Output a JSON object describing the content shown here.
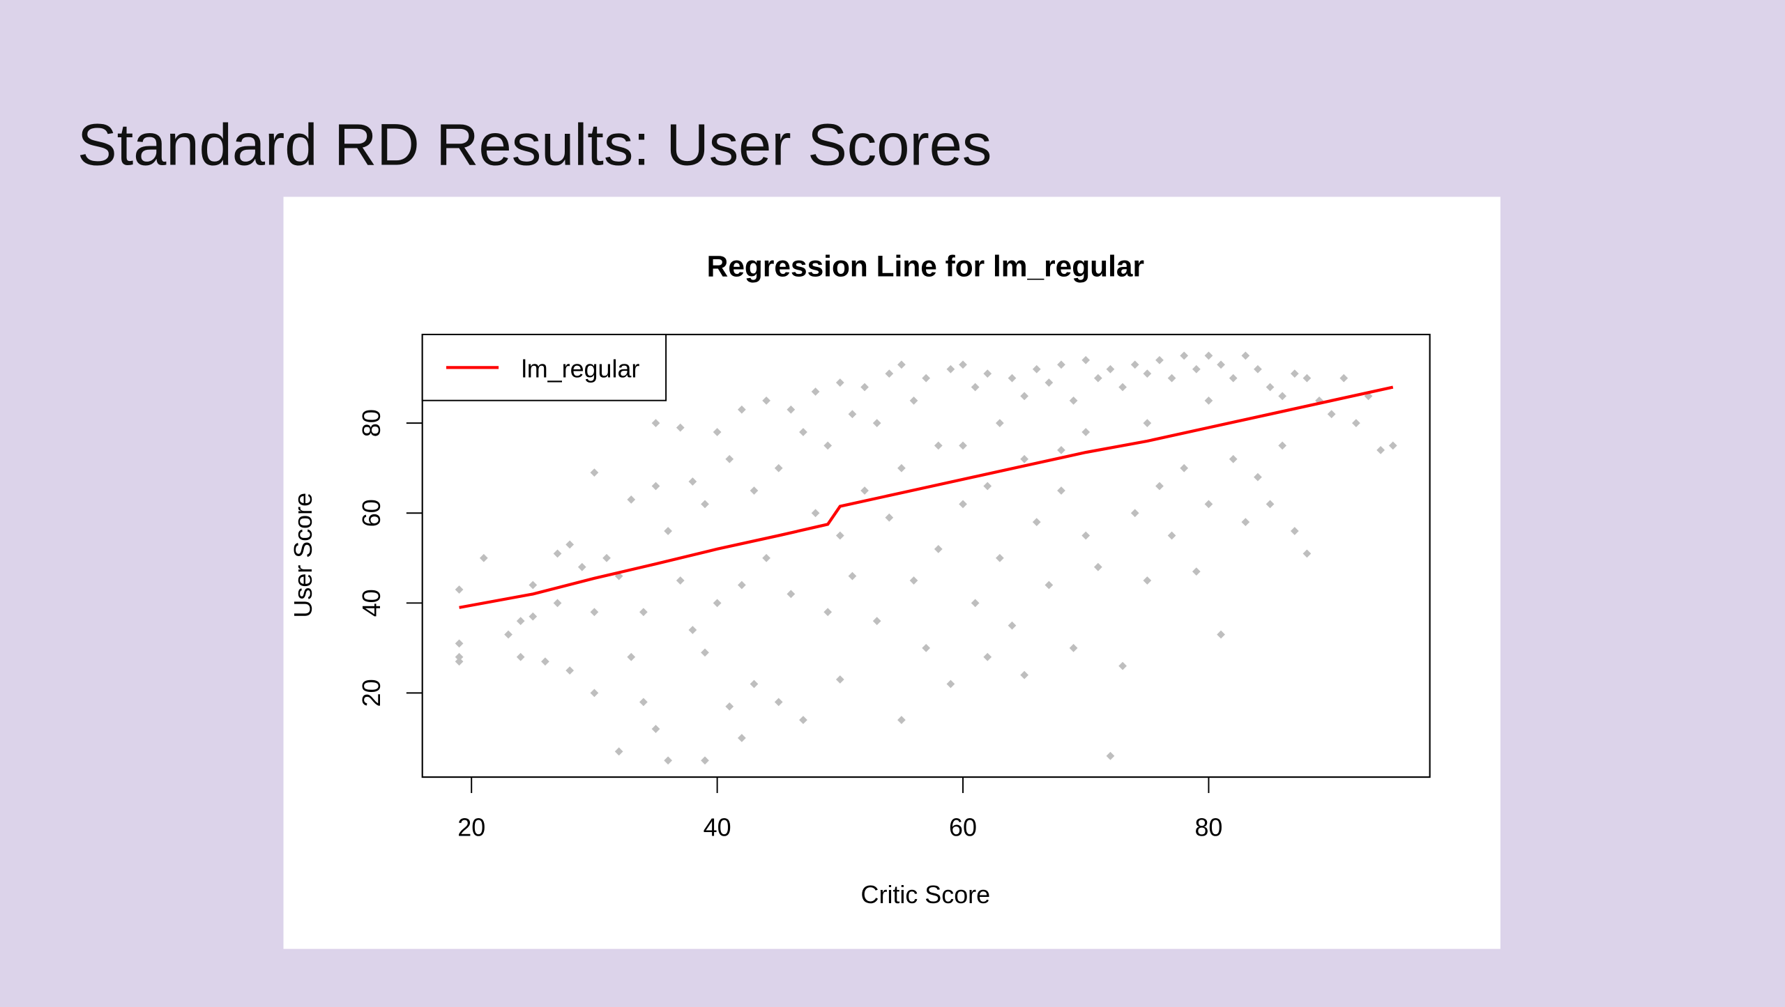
{
  "slide": {
    "title": "Standard RD Results: User Scores"
  },
  "chart_data": {
    "type": "scatter",
    "title": "Regression Line for lm_regular",
    "x_label": "Critic Score",
    "y_label": "User Score",
    "xlim": [
      16,
      98
    ],
    "ylim": [
      1.3,
      99.7
    ],
    "xticks": [
      20,
      40,
      60,
      80
    ],
    "yticks": [
      20,
      40,
      60,
      80
    ],
    "grid": false,
    "legend": "top-left",
    "point_color": "#bebebe",
    "points": [
      [
        19,
        43
      ],
      [
        19,
        31
      ],
      [
        19,
        28
      ],
      [
        19,
        27
      ],
      [
        21,
        50
      ],
      [
        23,
        33
      ],
      [
        24,
        36
      ],
      [
        24,
        28
      ],
      [
        25,
        44
      ],
      [
        25,
        37
      ],
      [
        26,
        27
      ],
      [
        27,
        51
      ],
      [
        27,
        40
      ],
      [
        28,
        53
      ],
      [
        28,
        25
      ],
      [
        29,
        48
      ],
      [
        30,
        69
      ],
      [
        30,
        38
      ],
      [
        30,
        20
      ],
      [
        31,
        50
      ],
      [
        32,
        46
      ],
      [
        32,
        7
      ],
      [
        33,
        63
      ],
      [
        33,
        28
      ],
      [
        34,
        38
      ],
      [
        34,
        18
      ],
      [
        35,
        80
      ],
      [
        35,
        66
      ],
      [
        35,
        12
      ],
      [
        36,
        56
      ],
      [
        36,
        5
      ],
      [
        37,
        79
      ],
      [
        37,
        45
      ],
      [
        38,
        67
      ],
      [
        38,
        34
      ],
      [
        39,
        62
      ],
      [
        39,
        29
      ],
      [
        39,
        5
      ],
      [
        40,
        78
      ],
      [
        40,
        40
      ],
      [
        41,
        72
      ],
      [
        41,
        17
      ],
      [
        42,
        83
      ],
      [
        42,
        44
      ],
      [
        42,
        10
      ],
      [
        43,
        65
      ],
      [
        43,
        22
      ],
      [
        44,
        85
      ],
      [
        44,
        50
      ],
      [
        45,
        70
      ],
      [
        45,
        18
      ],
      [
        46,
        83
      ],
      [
        46,
        42
      ],
      [
        47,
        78
      ],
      [
        47,
        14
      ],
      [
        48,
        87
      ],
      [
        48,
        60
      ],
      [
        49,
        75
      ],
      [
        49,
        38
      ],
      [
        50,
        89
      ],
      [
        50,
        55
      ],
      [
        50,
        23
      ],
      [
        51,
        82
      ],
      [
        51,
        46
      ],
      [
        52,
        88
      ],
      [
        52,
        65
      ],
      [
        53,
        80
      ],
      [
        53,
        36
      ],
      [
        54,
        91
      ],
      [
        54,
        59
      ],
      [
        55,
        93
      ],
      [
        55,
        14
      ],
      [
        56,
        85
      ],
      [
        56,
        45
      ],
      [
        57,
        90
      ],
      [
        57,
        30
      ],
      [
        58,
        75
      ],
      [
        58,
        52
      ],
      [
        59,
        92
      ],
      [
        59,
        22
      ],
      [
        60,
        93
      ],
      [
        60,
        62
      ],
      [
        61,
        88
      ],
      [
        61,
        40
      ],
      [
        62,
        91
      ],
      [
        62,
        28
      ],
      [
        63,
        80
      ],
      [
        63,
        50
      ],
      [
        64,
        90
      ],
      [
        64,
        35
      ],
      [
        65,
        86
      ],
      [
        65,
        24
      ],
      [
        66,
        92
      ],
      [
        66,
        58
      ],
      [
        67,
        89
      ],
      [
        67,
        44
      ],
      [
        68,
        93
      ],
      [
        68,
        65
      ],
      [
        69,
        85
      ],
      [
        69,
        30
      ],
      [
        70,
        94
      ],
      [
        70,
        55
      ],
      [
        71,
        90
      ],
      [
        71,
        48
      ],
      [
        72,
        92
      ],
      [
        72,
        6
      ],
      [
        73,
        88
      ],
      [
        73,
        26
      ],
      [
        74,
        93
      ],
      [
        74,
        60
      ],
      [
        75,
        91
      ],
      [
        75,
        45
      ],
      [
        76,
        94
      ],
      [
        76,
        66
      ],
      [
        77,
        90
      ],
      [
        77,
        55
      ],
      [
        78,
        95
      ],
      [
        78,
        70
      ],
      [
        79,
        92
      ],
      [
        79,
        47
      ],
      [
        80,
        95
      ],
      [
        80,
        62
      ],
      [
        81,
        93
      ],
      [
        81,
        33
      ],
      [
        82,
        90
      ],
      [
        82,
        72
      ],
      [
        83,
        95
      ],
      [
        83,
        58
      ],
      [
        84,
        92
      ],
      [
        84,
        68
      ],
      [
        85,
        88
      ],
      [
        85,
        62
      ],
      [
        86,
        86
      ],
      [
        86,
        75
      ],
      [
        87,
        91
      ],
      [
        87,
        56
      ],
      [
        88,
        90
      ],
      [
        88,
        51
      ],
      [
        89,
        85
      ],
      [
        90,
        82
      ],
      [
        91,
        90
      ],
      [
        92,
        80
      ],
      [
        93,
        86
      ],
      [
        94,
        74
      ],
      [
        95,
        75
      ],
      [
        55,
        70
      ],
      [
        60,
        75
      ],
      [
        65,
        72
      ],
      [
        70,
        78
      ],
      [
        75,
        80
      ],
      [
        80,
        85
      ],
      [
        62,
        66
      ],
      [
        68,
        74
      ]
    ],
    "series": [
      {
        "name": "lm_regular",
        "color": "#ff0000",
        "x": [
          19,
          25,
          30,
          35,
          40,
          45,
          49,
          50,
          55,
          60,
          65,
          70,
          75,
          80,
          85,
          90,
          95
        ],
        "values": [
          39,
          42,
          45.5,
          48.7,
          52,
          55,
          57.5,
          61.5,
          64.5,
          67.5,
          70.5,
          73.5,
          76,
          79,
          82,
          85,
          88
        ]
      }
    ]
  }
}
